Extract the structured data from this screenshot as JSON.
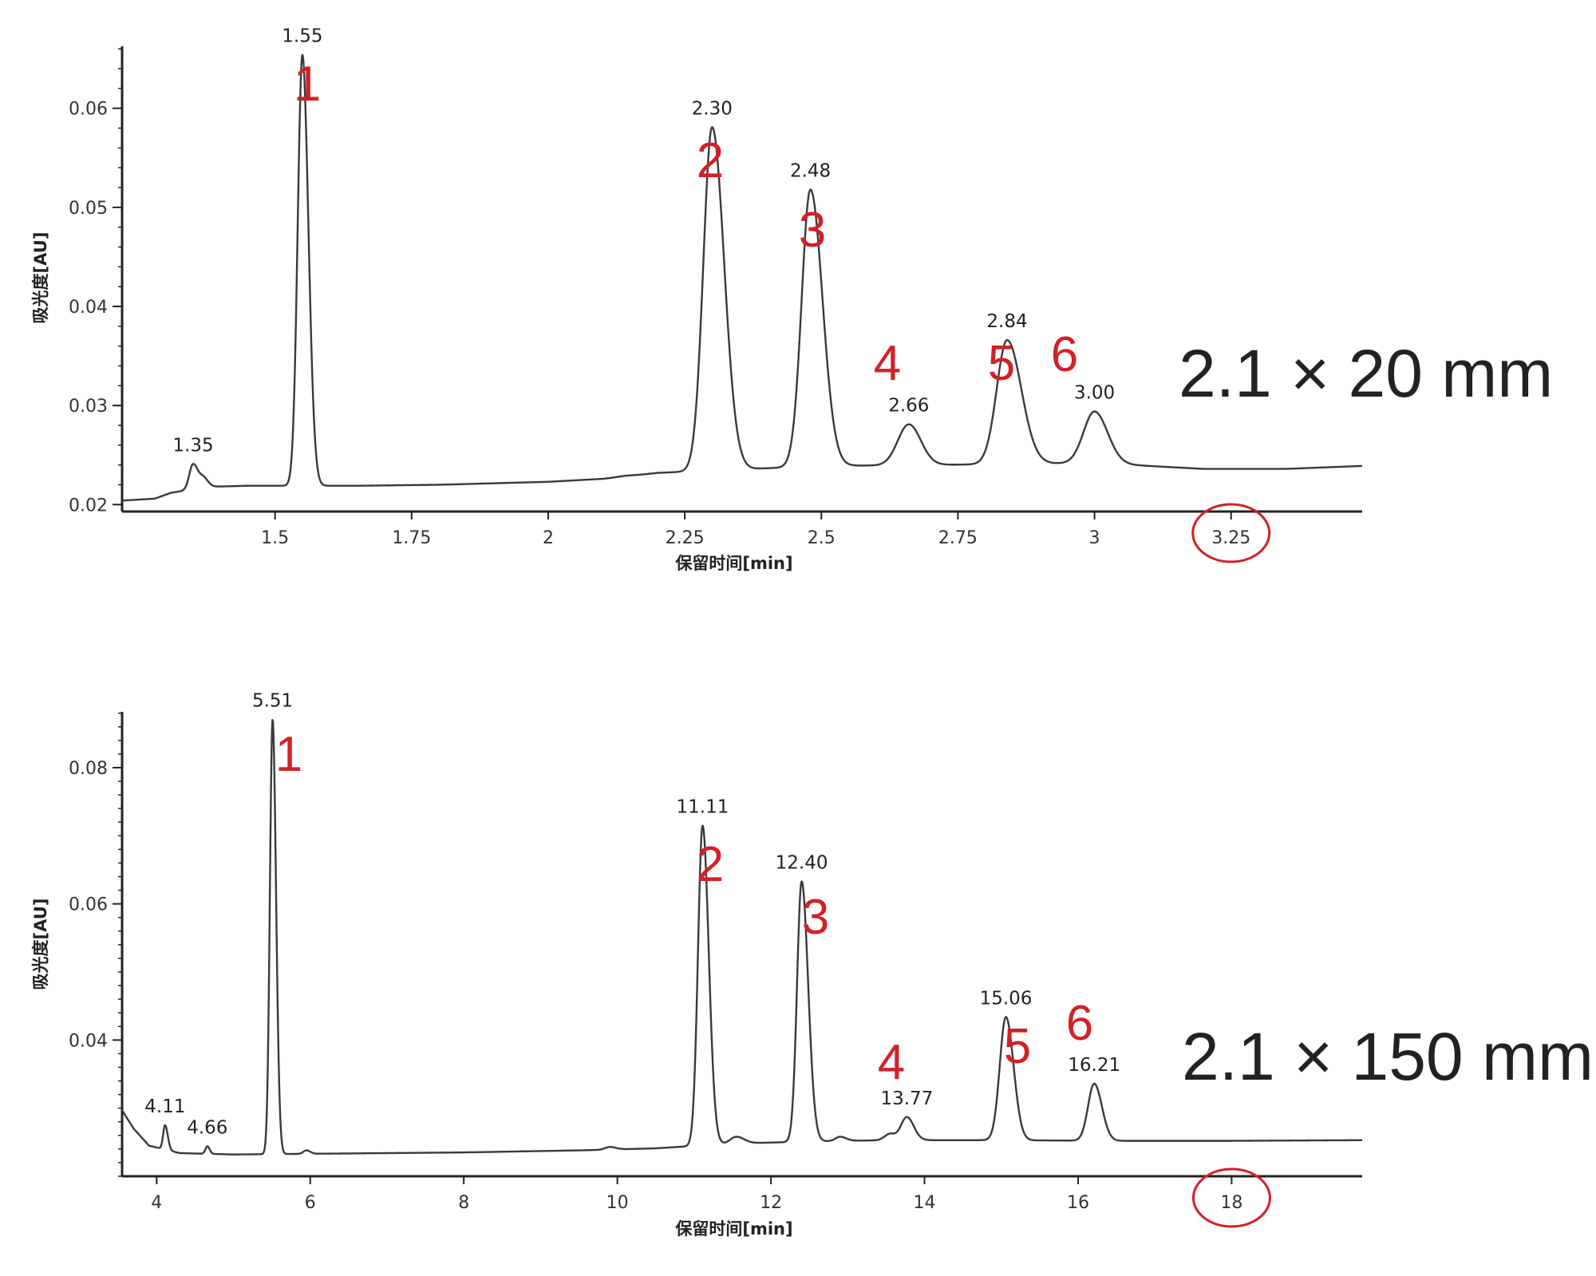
{
  "colors": {
    "trace": "#3a3a3a",
    "axis": "#222222",
    "peak_number": "#d32027",
    "highlight_circle": "#d32027"
  },
  "chart_data": [
    {
      "type": "line",
      "column_size": "2.1 × 20 mm",
      "xlabel": "保留时间[min]",
      "ylabel": "吸光度[AU]",
      "xlim": [
        1.22,
        3.49
      ],
      "ylim": [
        0.0193,
        0.0665
      ],
      "x_ticks": [
        "1.5",
        "1.75",
        "2",
        "2.25",
        "2.5",
        "2.75",
        "3",
        "3.25"
      ],
      "y_ticks": [
        "0.02",
        "0.03",
        "0.04",
        "0.05",
        "0.06"
      ],
      "circled_tick": "3.25",
      "baseline": [
        [
          1.22,
          0.0204
        ],
        [
          1.28,
          0.0206
        ],
        [
          1.31,
          0.0212
        ],
        [
          1.38,
          0.0218
        ],
        [
          1.45,
          0.0219
        ],
        [
          1.65,
          0.0219
        ],
        [
          1.8,
          0.022
        ],
        [
          2.0,
          0.0223
        ],
        [
          2.1,
          0.0226
        ],
        [
          2.15,
          0.0229
        ],
        [
          2.2,
          0.0232
        ],
        [
          2.5,
          0.0239
        ],
        [
          2.7,
          0.024
        ],
        [
          3.0,
          0.0242
        ],
        [
          3.2,
          0.0236
        ],
        [
          3.35,
          0.0236
        ],
        [
          3.49,
          0.0239
        ]
      ],
      "peaks": [
        {
          "rt": 1.35,
          "label": "1.35",
          "apex": 0.0241,
          "sigma_l": 0.007,
          "sigma_r": 0.01,
          "number": ""
        },
        {
          "rt": 1.37,
          "label": "",
          "apex": 0.0225,
          "sigma_l": 0.006,
          "sigma_r": 0.008,
          "number": ""
        },
        {
          "rt": 1.55,
          "label": "1.55",
          "apex": 0.0654,
          "sigma_l": 0.0085,
          "sigma_r": 0.011,
          "number": "1"
        },
        {
          "rt": 2.14,
          "label": "",
          "apex": 0.0229,
          "sigma_l": 0.012,
          "sigma_r": 0.015,
          "number": ""
        },
        {
          "rt": 2.3,
          "label": "2.30",
          "apex": 0.0581,
          "sigma_l": 0.016,
          "sigma_r": 0.022,
          "number": "2"
        },
        {
          "rt": 2.48,
          "label": "2.48",
          "apex": 0.0518,
          "sigma_l": 0.016,
          "sigma_r": 0.022,
          "number": "3"
        },
        {
          "rt": 2.66,
          "label": "2.66",
          "apex": 0.0281,
          "sigma_l": 0.02,
          "sigma_r": 0.022,
          "number": "4"
        },
        {
          "rt": 2.84,
          "label": "2.84",
          "apex": 0.0366,
          "sigma_l": 0.019,
          "sigma_r": 0.026,
          "number": "5"
        },
        {
          "rt": 3.0,
          "label": "3.00",
          "apex": 0.0294,
          "sigma_l": 0.02,
          "sigma_r": 0.024,
          "number": "6"
        }
      ]
    },
    {
      "type": "line",
      "column_size": "2.1 × 150 mm",
      "xlabel": "保留时间[min]",
      "ylabel": "吸光度[AU]",
      "xlim": [
        3.55,
        19.7
      ],
      "ylim": [
        0.02,
        0.0882
      ],
      "x_ticks": [
        "4",
        "6",
        "8",
        "10",
        "12",
        "14",
        "16",
        "18"
      ],
      "y_ticks": [
        "0.04",
        "0.06",
        "0.08"
      ],
      "circled_tick": "18",
      "baseline": [
        [
          3.55,
          0.0297
        ],
        [
          3.7,
          0.027
        ],
        [
          3.9,
          0.0245
        ],
        [
          4.3,
          0.0234
        ],
        [
          5.0,
          0.0232
        ],
        [
          6.0,
          0.0233
        ],
        [
          8.0,
          0.0235
        ],
        [
          9.5,
          0.0238
        ],
        [
          10.5,
          0.0241
        ],
        [
          11.5,
          0.0248
        ],
        [
          12.5,
          0.0251
        ],
        [
          13.5,
          0.0253
        ],
        [
          15.0,
          0.0253
        ],
        [
          16.5,
          0.0252
        ],
        [
          18.0,
          0.0252
        ],
        [
          19.7,
          0.0253
        ]
      ],
      "peaks": [
        {
          "rt": 4.11,
          "label": "4.11",
          "apex": 0.0275,
          "sigma_l": 0.025,
          "sigma_r": 0.035,
          "number": ""
        },
        {
          "rt": 4.66,
          "label": "4.66",
          "apex": 0.0244,
          "sigma_l": 0.025,
          "sigma_r": 0.03,
          "number": ""
        },
        {
          "rt": 5.51,
          "label": "5.51",
          "apex": 0.0871,
          "sigma_l": 0.035,
          "sigma_r": 0.045,
          "number": "1"
        },
        {
          "rt": 5.95,
          "label": "",
          "apex": 0.0238,
          "sigma_l": 0.04,
          "sigma_r": 0.05,
          "number": ""
        },
        {
          "rt": 9.9,
          "label": "",
          "apex": 0.0243,
          "sigma_l": 0.06,
          "sigma_r": 0.08,
          "number": ""
        },
        {
          "rt": 11.11,
          "label": "11.11",
          "apex": 0.0715,
          "sigma_l": 0.06,
          "sigma_r": 0.08,
          "number": "2"
        },
        {
          "rt": 11.55,
          "label": "",
          "apex": 0.0258,
          "sigma_l": 0.08,
          "sigma_r": 0.1,
          "number": ""
        },
        {
          "rt": 12.4,
          "label": "12.40",
          "apex": 0.0633,
          "sigma_l": 0.06,
          "sigma_r": 0.085,
          "number": "3"
        },
        {
          "rt": 12.9,
          "label": "",
          "apex": 0.0258,
          "sigma_l": 0.06,
          "sigma_r": 0.08,
          "number": ""
        },
        {
          "rt": 13.55,
          "label": "",
          "apex": 0.0262,
          "sigma_l": 0.07,
          "sigma_r": 0.06,
          "number": ""
        },
        {
          "rt": 13.77,
          "label": "13.77",
          "apex": 0.0287,
          "sigma_l": 0.08,
          "sigma_r": 0.09,
          "number": "4"
        },
        {
          "rt": 15.06,
          "label": "15.06",
          "apex": 0.0434,
          "sigma_l": 0.08,
          "sigma_r": 0.1,
          "number": "5"
        },
        {
          "rt": 16.21,
          "label": "16.21",
          "apex": 0.0336,
          "sigma_l": 0.08,
          "sigma_r": 0.1,
          "number": "6"
        }
      ]
    }
  ]
}
